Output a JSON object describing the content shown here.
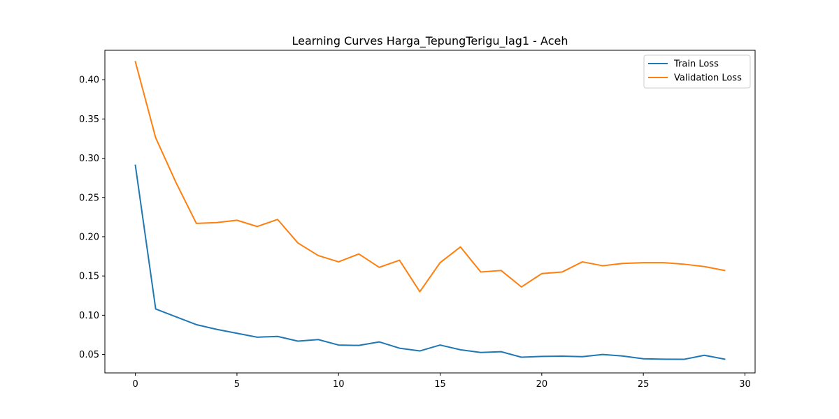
{
  "chart_data": {
    "type": "line",
    "title": "Learning Curves Harga_TepungTerigu_lag1 - Aceh",
    "xlabel": "",
    "ylabel": "",
    "xlim": [
      -1.5,
      30.5
    ],
    "ylim": [
      0.0265,
      0.4375
    ],
    "x_ticks": [
      0,
      5,
      10,
      15,
      20,
      25,
      30
    ],
    "y_ticks": [
      0.05,
      0.1,
      0.15,
      0.2,
      0.25,
      0.3,
      0.35,
      0.4
    ],
    "grid": false,
    "legend_position": "top-right",
    "x": [
      0,
      1,
      2,
      3,
      4,
      5,
      6,
      7,
      8,
      9,
      10,
      11,
      12,
      13,
      14,
      15,
      16,
      17,
      18,
      19,
      20,
      21,
      22,
      23,
      24,
      25,
      26,
      27,
      28,
      29
    ],
    "series": [
      {
        "name": "Train Loss",
        "color": "#1f77b4",
        "values": [
          0.291,
          0.108,
          0.098,
          0.088,
          0.082,
          0.077,
          0.072,
          0.073,
          0.067,
          0.069,
          0.062,
          0.0615,
          0.066,
          0.058,
          0.0545,
          0.062,
          0.056,
          0.0525,
          0.0535,
          0.0465,
          0.0475,
          0.0478,
          0.0472,
          0.05,
          0.048,
          0.0445,
          0.044,
          0.0438,
          0.049,
          0.044
        ]
      },
      {
        "name": "Validation Loss",
        "color": "#ff7f0e",
        "values": [
          0.423,
          0.326,
          0.269,
          0.217,
          0.218,
          0.221,
          0.213,
          0.222,
          0.192,
          0.176,
          0.168,
          0.178,
          0.161,
          0.17,
          0.13,
          0.167,
          0.187,
          0.155,
          0.157,
          0.136,
          0.153,
          0.155,
          0.168,
          0.163,
          0.166,
          0.167,
          0.167,
          0.165,
          0.162,
          0.157
        ]
      }
    ]
  }
}
